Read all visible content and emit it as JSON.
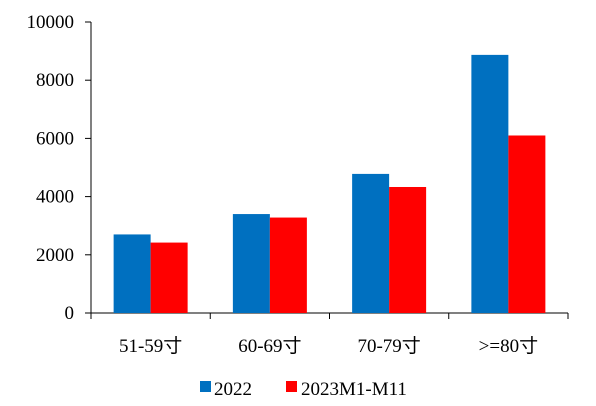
{
  "chart_data": {
    "type": "bar",
    "categories": [
      "51-59寸",
      "60-69寸",
      "70-79寸",
      ">=80寸"
    ],
    "series": [
      {
        "name": "2022",
        "color": "#0070C0",
        "values": [
          2700,
          3400,
          4780,
          8870
        ]
      },
      {
        "name": "2023M1-M11",
        "color": "#FF0000",
        "values": [
          2420,
          3280,
          4330,
          6100
        ]
      }
    ],
    "title": "",
    "xlabel": "",
    "ylabel": "",
    "ylim": [
      0,
      10000
    ],
    "yticks": [
      "0",
      "2000",
      "4000",
      "6000",
      "8000",
      "10000"
    ],
    "grid": false,
    "legend_position": "bottom"
  }
}
